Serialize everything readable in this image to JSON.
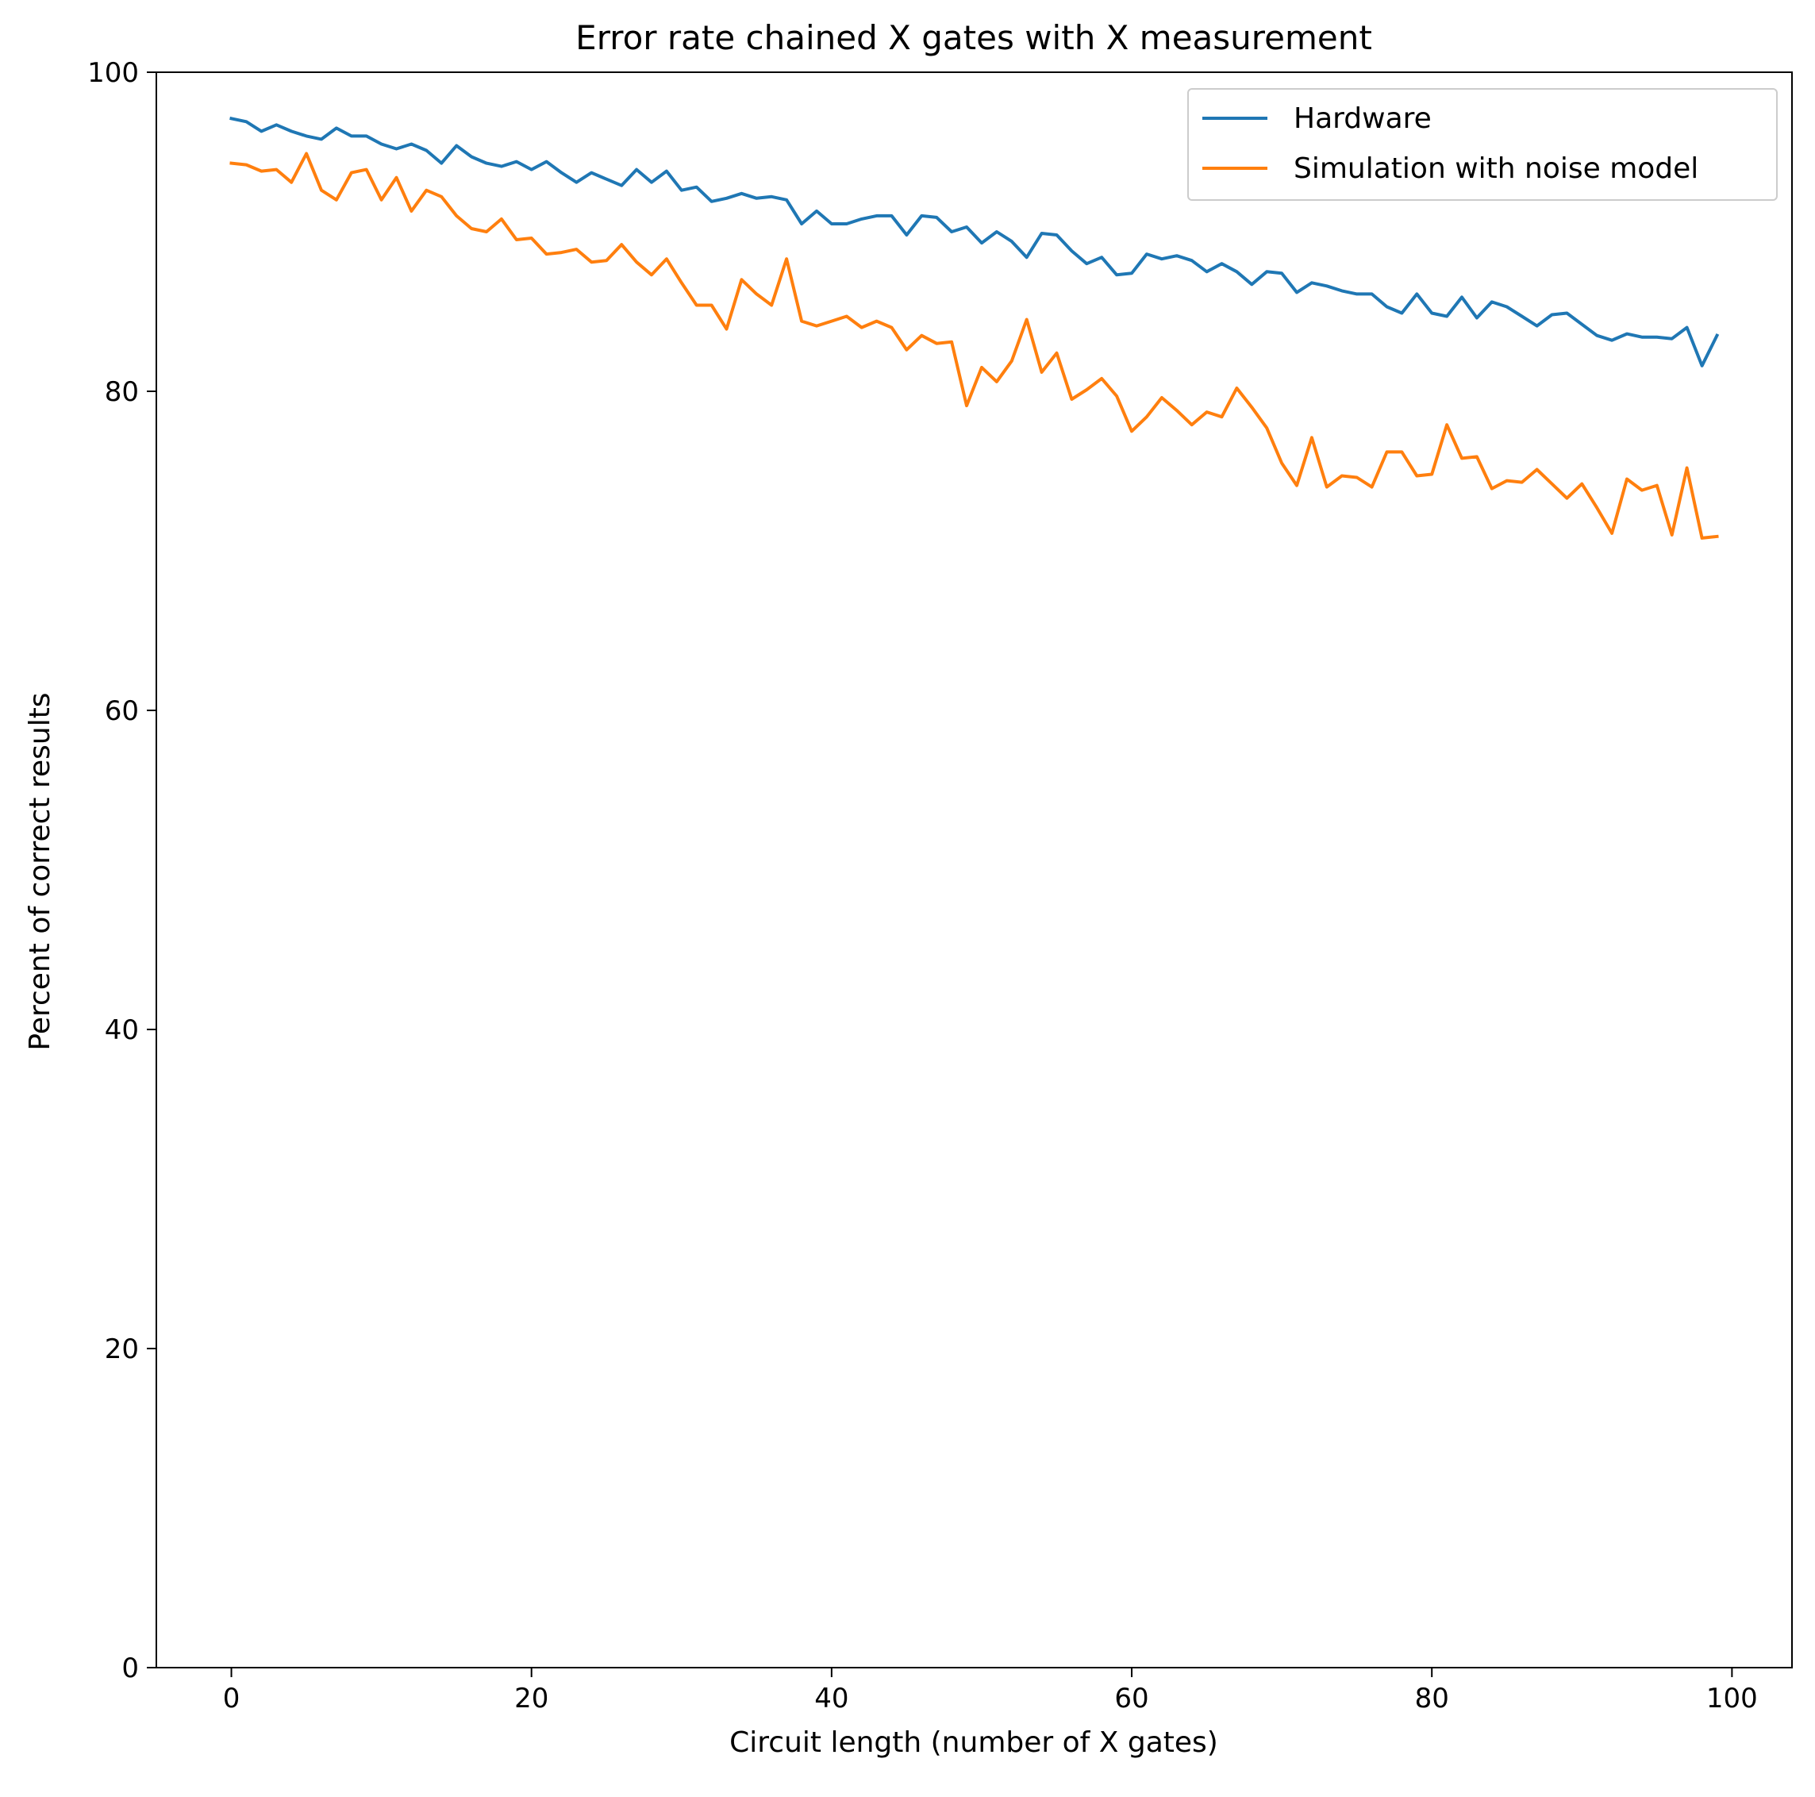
{
  "chart_data": {
    "type": "line",
    "title": "Error rate chained X gates with X measurement",
    "xlabel": "Circuit length (number of X gates)",
    "ylabel": "Percent of correct results",
    "xlim": [
      -5,
      104
    ],
    "ylim": [
      0,
      100
    ],
    "xticks": [
      0,
      20,
      40,
      60,
      80,
      100
    ],
    "yticks": [
      0,
      20,
      40,
      60,
      80,
      100
    ],
    "grid": false,
    "legend_position": "top-right",
    "x": [
      0,
      1,
      2,
      3,
      4,
      5,
      6,
      7,
      8,
      9,
      10,
      11,
      12,
      13,
      14,
      15,
      16,
      17,
      18,
      19,
      20,
      21,
      22,
      23,
      24,
      25,
      26,
      27,
      28,
      29,
      30,
      31,
      32,
      33,
      34,
      35,
      36,
      37,
      38,
      39,
      40,
      41,
      42,
      43,
      44,
      45,
      46,
      47,
      48,
      49,
      50,
      51,
      52,
      53,
      54,
      55,
      56,
      57,
      58,
      59,
      60,
      61,
      62,
      63,
      64,
      65,
      66,
      67,
      68,
      69,
      70,
      71,
      72,
      73,
      74,
      75,
      76,
      77,
      78,
      79,
      80,
      81,
      82,
      83,
      84,
      85,
      86,
      87,
      88,
      89,
      90,
      91,
      92,
      93,
      94,
      95,
      96,
      97,
      98,
      99
    ],
    "series": [
      {
        "name": "Hardware",
        "color": "#1f77b4",
        "values": [
          97.1,
          96.9,
          96.3,
          96.7,
          96.3,
          96.0,
          95.8,
          96.5,
          96.0,
          96.0,
          95.5,
          95.2,
          95.5,
          95.1,
          94.3,
          95.4,
          94.7,
          94.3,
          94.1,
          94.4,
          93.9,
          94.4,
          93.7,
          93.1,
          93.7,
          93.3,
          92.9,
          93.9,
          93.1,
          93.8,
          92.6,
          92.8,
          91.9,
          92.1,
          92.4,
          92.1,
          92.2,
          92.0,
          90.5,
          91.3,
          90.5,
          90.5,
          90.8,
          91.0,
          91.0,
          89.8,
          91.0,
          90.9,
          90.0,
          90.3,
          89.3,
          90.0,
          89.4,
          88.4,
          89.9,
          89.8,
          88.8,
          88.0,
          88.4,
          87.3,
          87.4,
          88.6,
          88.3,
          88.5,
          88.2,
          87.5,
          88.0,
          87.5,
          86.7,
          87.5,
          87.4,
          86.2,
          86.8,
          86.6,
          86.3,
          86.1,
          86.1,
          85.3,
          84.9,
          86.1,
          84.9,
          84.7,
          85.9,
          84.6,
          85.6,
          85.3,
          84.7,
          84.1,
          84.8,
          84.9,
          84.2,
          83.5,
          83.2,
          83.6,
          83.4,
          83.4,
          83.3,
          84.0,
          81.6,
          83.5
        ]
      },
      {
        "name": "Simulation with noise model",
        "color": "#ff7f0e",
        "values": [
          94.3,
          94.2,
          93.8,
          93.9,
          93.1,
          94.9,
          92.6,
          92.0,
          93.7,
          93.9,
          92.0,
          93.4,
          91.3,
          92.6,
          92.2,
          91.0,
          90.2,
          90.0,
          90.8,
          89.5,
          89.6,
          88.6,
          88.7,
          88.9,
          88.1,
          88.2,
          89.2,
          88.1,
          87.3,
          88.3,
          86.8,
          85.4,
          85.4,
          83.9,
          87.0,
          86.1,
          85.4,
          88.3,
          84.4,
          84.1,
          84.4,
          84.7,
          84.0,
          84.4,
          84.0,
          82.6,
          83.5,
          83.0,
          83.1,
          79.1,
          81.5,
          80.6,
          81.9,
          84.5,
          81.2,
          82.4,
          79.5,
          80.1,
          80.8,
          79.7,
          77.5,
          78.4,
          79.6,
          78.8,
          77.9,
          78.7,
          78.4,
          80.2,
          79.0,
          77.7,
          75.5,
          74.1,
          77.1,
          74.0,
          74.7,
          74.6,
          74.0,
          76.2,
          76.2,
          74.7,
          74.8,
          77.9,
          75.8,
          75.9,
          73.9,
          74.4,
          74.3,
          75.1,
          74.2,
          73.3,
          74.2,
          72.7,
          71.1,
          74.5,
          73.8,
          74.1,
          71.0,
          75.2,
          70.8,
          70.9
        ]
      }
    ]
  }
}
